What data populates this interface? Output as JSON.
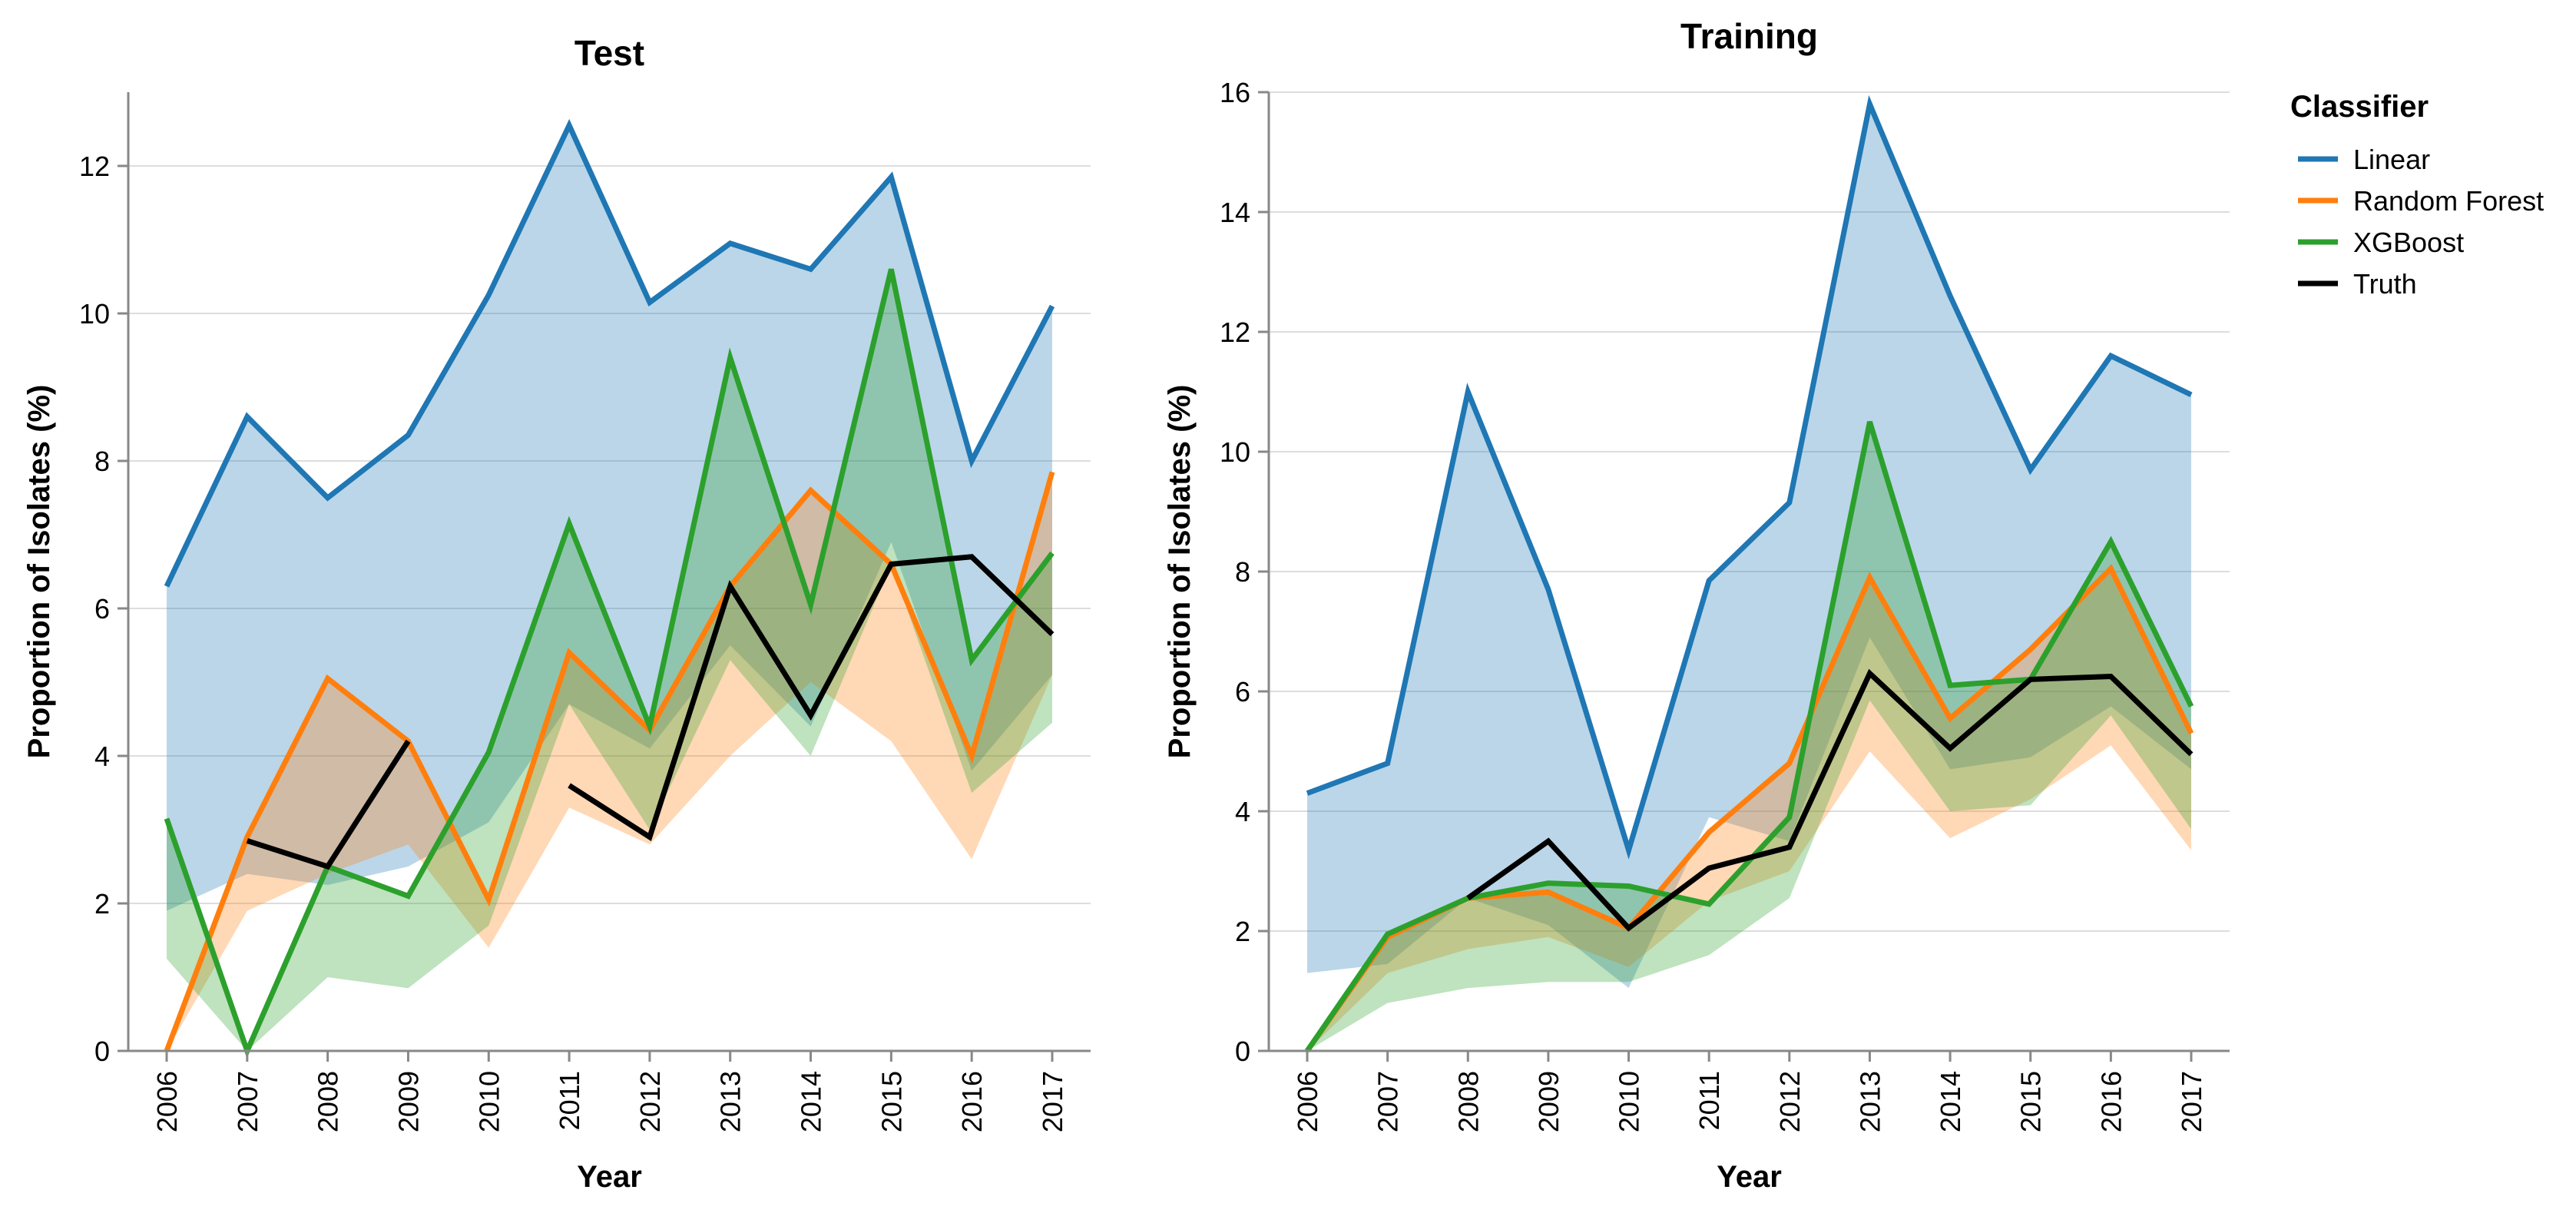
{
  "chart_data": [
    {
      "type": "line",
      "title": "Test",
      "xlabel": "Year",
      "ylabel": "Proportion of Isolates (%)",
      "categories": [
        "2006",
        "2007",
        "2008",
        "2009",
        "2010",
        "2011",
        "2012",
        "2013",
        "2014",
        "2015",
        "2016",
        "2017"
      ],
      "ylim": [
        0,
        13
      ],
      "yticks": [
        0,
        2,
        4,
        6,
        8,
        10,
        12
      ],
      "grid": true,
      "series": [
        {
          "name": "Linear",
          "color": "#1f77b4",
          "values": [
            6.3,
            8.6,
            7.5,
            8.35,
            10.25,
            12.55,
            10.15,
            10.95,
            10.6,
            11.85,
            8.0,
            10.1
          ],
          "band_lower": [
            1.9,
            2.4,
            2.25,
            2.5,
            3.1,
            4.7,
            4.1,
            5.5,
            4.4,
            6.9,
            3.8,
            5.1
          ],
          "band_upper": [
            6.3,
            8.6,
            7.5,
            8.35,
            10.25,
            12.55,
            10.15,
            10.95,
            10.6,
            11.85,
            8.0,
            10.1
          ]
        },
        {
          "name": "Random Forest",
          "color": "#ff7f0e",
          "values": [
            0.0,
            2.9,
            5.05,
            4.2,
            2.05,
            5.4,
            4.35,
            6.3,
            7.6,
            6.6,
            4.0,
            7.85
          ],
          "band_lower": [
            0.0,
            1.9,
            2.4,
            2.8,
            1.4,
            3.3,
            2.8,
            4.0,
            5.0,
            4.2,
            2.6,
            5.1
          ],
          "band_upper": [
            0.0,
            2.9,
            5.05,
            4.2,
            2.05,
            5.4,
            4.35,
            6.3,
            7.6,
            6.6,
            4.0,
            7.85
          ]
        },
        {
          "name": "XGBoost",
          "color": "#2ca02c",
          "values": [
            3.15,
            0.0,
            2.5,
            2.1,
            4.05,
            7.15,
            4.4,
            9.4,
            6.05,
            10.6,
            5.3,
            6.75
          ],
          "band_lower": [
            1.25,
            0.0,
            1.0,
            0.85,
            1.7,
            4.7,
            3.0,
            5.3,
            4.0,
            6.6,
            3.5,
            4.45
          ],
          "band_upper": [
            3.15,
            0.0,
            2.5,
            2.1,
            4.05,
            7.15,
            4.4,
            9.4,
            6.05,
            10.6,
            5.3,
            6.75
          ]
        },
        {
          "name": "Truth",
          "color": "#000000",
          "values": [
            null,
            2.85,
            2.5,
            4.2,
            null,
            3.6,
            2.9,
            6.3,
            4.55,
            6.6,
            6.7,
            5.65
          ]
        }
      ]
    },
    {
      "type": "line",
      "title": "Training",
      "xlabel": "Year",
      "ylabel": "Proportion of Isolates (%)",
      "categories": [
        "2006",
        "2007",
        "2008",
        "2009",
        "2010",
        "2011",
        "2012",
        "2013",
        "2014",
        "2015",
        "2016",
        "2017"
      ],
      "ylim": [
        0,
        16
      ],
      "yticks": [
        0,
        2,
        4,
        6,
        8,
        10,
        12,
        14,
        16
      ],
      "grid": true,
      "series": [
        {
          "name": "Linear",
          "color": "#1f77b4",
          "values": [
            4.3,
            4.8,
            11.0,
            7.7,
            3.35,
            7.85,
            9.15,
            15.8,
            12.6,
            9.7,
            11.6,
            10.95
          ],
          "band_lower": [
            1.3,
            1.45,
            2.55,
            2.1,
            1.05,
            3.9,
            3.5,
            6.9,
            4.7,
            4.9,
            5.75,
            4.7
          ],
          "band_upper": [
            4.3,
            4.8,
            11.0,
            7.7,
            3.35,
            7.85,
            9.15,
            15.8,
            12.6,
            9.7,
            11.6,
            10.95
          ]
        },
        {
          "name": "Random Forest",
          "color": "#ff7f0e",
          "values": [
            0.0,
            1.9,
            2.55,
            2.65,
            2.05,
            3.65,
            4.8,
            7.9,
            5.55,
            6.7,
            8.05,
            5.3
          ],
          "band_lower": [
            0.0,
            1.3,
            1.7,
            1.9,
            1.4,
            2.5,
            3.0,
            5.0,
            3.55,
            4.2,
            5.1,
            3.35
          ],
          "band_upper": [
            0.0,
            1.9,
            2.55,
            2.65,
            2.05,
            3.65,
            4.8,
            7.9,
            5.55,
            6.7,
            8.05,
            5.3
          ]
        },
        {
          "name": "XGBoost",
          "color": "#2ca02c",
          "values": [
            0.0,
            1.95,
            2.55,
            2.8,
            2.75,
            2.45,
            3.9,
            10.5,
            6.1,
            6.2,
            8.5,
            5.75
          ],
          "band_lower": [
            0.0,
            0.8,
            1.05,
            1.15,
            1.15,
            1.6,
            2.55,
            5.85,
            4.0,
            4.1,
            5.6,
            3.7
          ],
          "band_upper": [
            0.0,
            1.95,
            2.55,
            2.8,
            2.75,
            2.45,
            3.9,
            10.5,
            6.1,
            6.2,
            8.5,
            5.75
          ]
        },
        {
          "name": "Truth",
          "color": "#000000",
          "values": [
            null,
            null,
            2.55,
            3.5,
            2.05,
            3.05,
            3.4,
            6.3,
            5.05,
            6.2,
            6.25,
            4.95
          ]
        }
      ]
    }
  ],
  "legend": {
    "title": "Classifier",
    "placement": "right",
    "items": [
      {
        "label": "Linear",
        "color": "#1f77b4"
      },
      {
        "label": "Random Forest",
        "color": "#ff7f0e"
      },
      {
        "label": "XGBoost",
        "color": "#2ca02c"
      },
      {
        "label": "Truth",
        "color": "#000000"
      }
    ]
  }
}
